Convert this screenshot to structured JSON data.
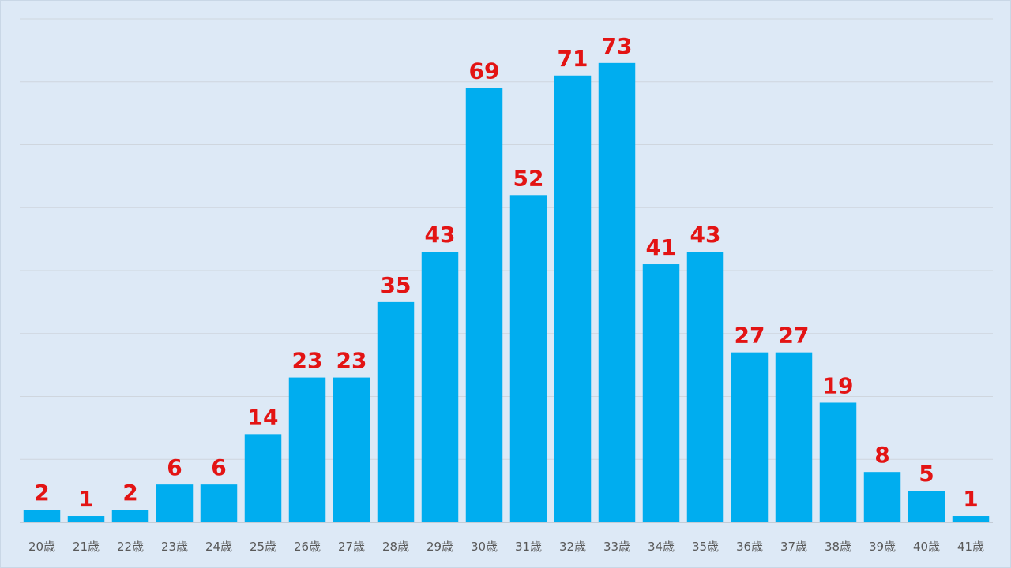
{
  "colors": {
    "bar": "#00adef",
    "data_label": "#e31414",
    "background": "#dde9f6"
  },
  "chart_data": {
    "type": "bar",
    "title": "",
    "xlabel": "",
    "ylabel": "",
    "categories": [
      "20歳",
      "21歳",
      "22歳",
      "23歳",
      "24歳",
      "25歳",
      "26歳",
      "27歳",
      "28歳",
      "29歳",
      "30歳",
      "31歳",
      "32歳",
      "33歳",
      "34歳",
      "35歳",
      "36歳",
      "37歳",
      "38歳",
      "39歳",
      "40歳",
      "41歳"
    ],
    "values": [
      2,
      1,
      2,
      6,
      6,
      14,
      23,
      23,
      35,
      43,
      69,
      52,
      71,
      73,
      41,
      43,
      27,
      27,
      19,
      8,
      5,
      1
    ],
    "ylim": [
      0,
      80
    ],
    "grid": true,
    "gridline_step": 10,
    "legend": "none",
    "data_labels": true
  }
}
